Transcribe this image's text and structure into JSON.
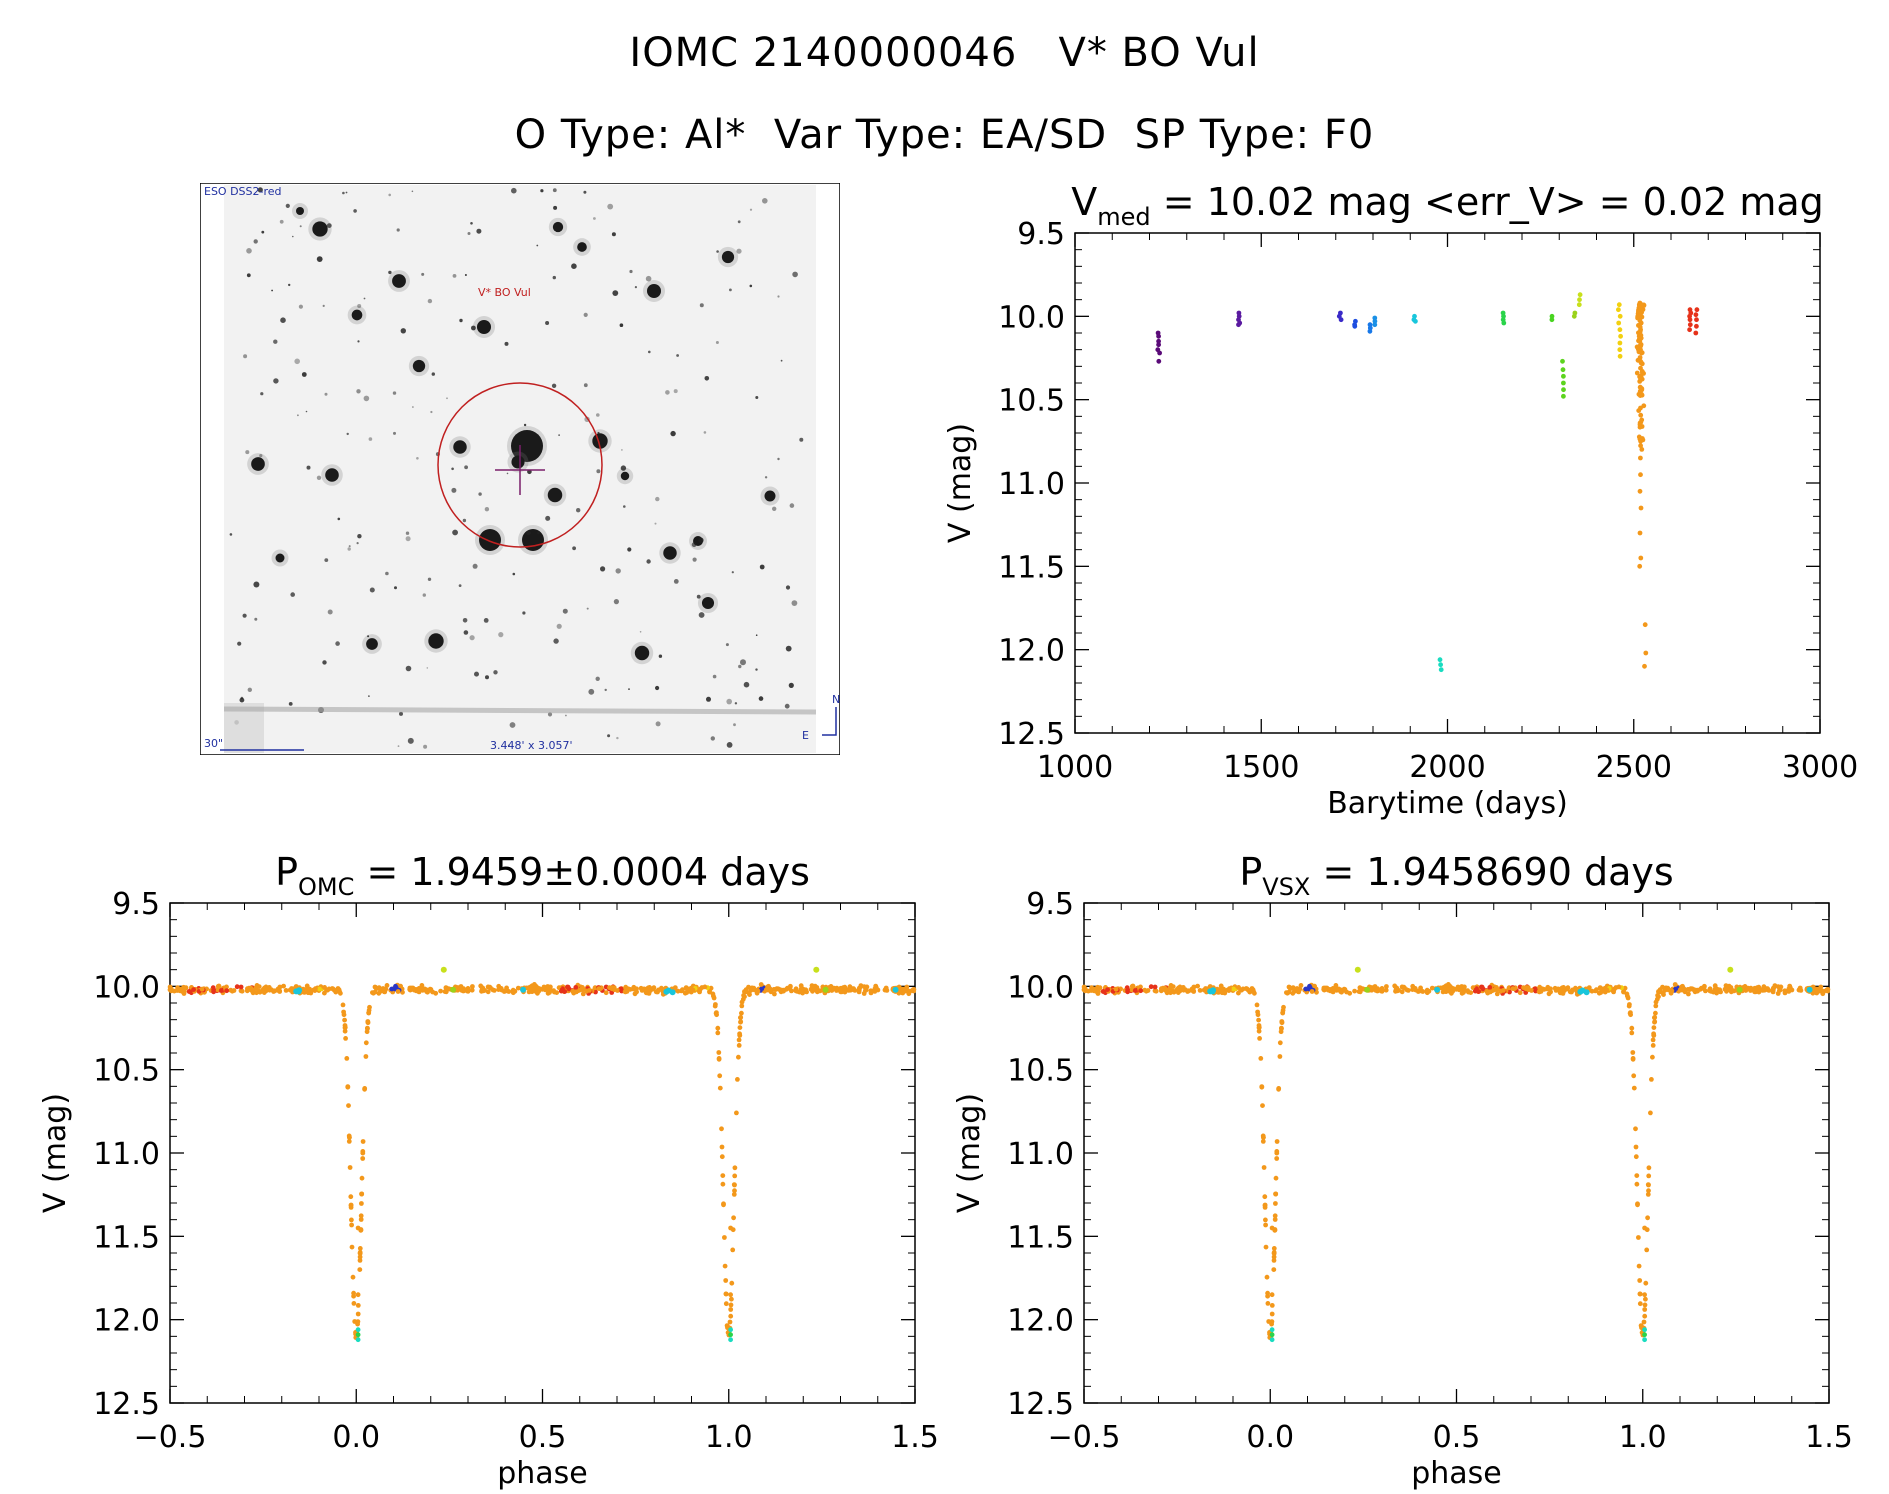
{
  "header": {
    "line1": "IOMC 2140000046   V* BO Vul",
    "line2": "O Type: Al*  Var Type: EA/SD  SP Type: F0"
  },
  "finder": {
    "survey_label": "ESO DSS2-red",
    "target_label": "V* BO Vul",
    "scale_label": "30\"",
    "fov_label": "3.448' x 3.057'",
    "east_label": "E",
    "north_label": "N"
  },
  "chart_data": [
    {
      "id": "lightcurve",
      "type": "scatter",
      "title_main": "V",
      "title_sub": "med",
      "title_rest": " = 10.02 mag <err_V> = 0.02 mag",
      "xlabel": "Barytime (days)",
      "ylabel": "V (mag)",
      "xlim": [
        1000,
        3000
      ],
      "ylim": [
        12.5,
        9.5
      ],
      "xticks": [
        1000,
        1500,
        2000,
        2500,
        3000
      ],
      "xtick_labels": [
        "1000",
        "1500",
        "2000",
        "2500",
        "3000"
      ],
      "yticks": [
        9.5,
        10.0,
        10.5,
        11.0,
        11.5,
        12.0,
        12.5
      ],
      "ytick_labels": [
        "9.5",
        "10.0",
        "10.5",
        "11.0",
        "11.5",
        "12.0",
        "12.5"
      ],
      "groups": [
        {
          "t": 1225,
          "color": "#5a0a78",
          "v": [
            10.1,
            10.12,
            10.15,
            10.17,
            10.2,
            10.22,
            10.27
          ]
        },
        {
          "t": 1440,
          "color": "#5a1aa0",
          "v": [
            9.98,
            10.0,
            10.02,
            10.04,
            10.05
          ]
        },
        {
          "t": 1712,
          "color": "#3a2ac8",
          "v": [
            9.98,
            10.0,
            10.02
          ]
        },
        {
          "t": 1750,
          "color": "#1e4ee0",
          "v": [
            10.03,
            10.05,
            10.06
          ]
        },
        {
          "t": 1792,
          "color": "#1878e8",
          "v": [
            10.05,
            10.07,
            10.09
          ]
        },
        {
          "t": 1805,
          "color": "#1a90e6",
          "v": [
            10.01,
            10.03,
            10.05
          ]
        },
        {
          "t": 1912,
          "color": "#19c6dc",
          "v": [
            10.0,
            10.02,
            10.03
          ]
        },
        {
          "t": 1982,
          "color": "#19dcc0",
          "v": [
            12.06,
            12.09,
            12.12
          ]
        },
        {
          "t": 2150,
          "color": "#2ad44a",
          "v": [
            9.98,
            10.0,
            10.02,
            10.04
          ]
        },
        {
          "t": 2280,
          "color": "#48d420",
          "v": [
            10.0,
            10.02
          ]
        },
        {
          "t": 2310,
          "color": "#5cd41e",
          "v": [
            10.27,
            10.32,
            10.36,
            10.4,
            10.44,
            10.48
          ]
        },
        {
          "t": 2340,
          "color": "#9ad21a",
          "v": [
            9.98,
            10.0
          ]
        },
        {
          "t": 2355,
          "color": "#c8e01c",
          "v": [
            9.87,
            9.9,
            9.93
          ]
        },
        {
          "t": 2462,
          "color": "#f2d010",
          "v": [
            9.93,
            9.96,
            10.0,
            10.04,
            10.08,
            10.12,
            10.16,
            10.2,
            10.24
          ]
        },
        {
          "t": 2518,
          "color": "#f3981b",
          "v": [
            9.92,
            9.96,
            10.0,
            10.04,
            10.08,
            10.14,
            10.2,
            10.28,
            10.36,
            10.45,
            10.55,
            10.65,
            10.75,
            10.85,
            10.95,
            11.05,
            11.15,
            11.3,
            11.45,
            11.5
          ]
        },
        {
          "t": 2530,
          "color": "#f3981b",
          "v": [
            11.85,
            12.02,
            12.1
          ]
        },
        {
          "t": 2650,
          "color": "#e6321a",
          "v": [
            9.96,
            9.98,
            10.0,
            10.02,
            10.05,
            10.08
          ]
        },
        {
          "t": 2668,
          "color": "#e6321a",
          "v": [
            9.96,
            9.99,
            10.02,
            10.06,
            10.1
          ]
        }
      ]
    },
    {
      "id": "phase_omc",
      "type": "scatter",
      "title_main": "P",
      "title_sub": "OMC",
      "title_rest": " = 1.9459±0.0004 days",
      "xlabel": "phase",
      "ylabel": "V (mag)",
      "xlim": [
        -0.5,
        1.5
      ],
      "ylim": [
        12.5,
        9.5
      ],
      "xticks": [
        -0.5,
        0.0,
        0.5,
        1.0,
        1.5
      ],
      "xtick_labels": [
        "−0.5",
        "0.0",
        "0.5",
        "1.0",
        "1.5"
      ],
      "yticks": [
        9.5,
        10.0,
        10.5,
        11.0,
        11.5,
        12.0,
        12.5
      ],
      "ytick_labels": [
        "9.5",
        "10.0",
        "10.5",
        "11.0",
        "11.5",
        "12.0",
        "12.5"
      ],
      "eclipse_depth_mag": 12.1,
      "eclipse_width_phase": 0.045,
      "baseline_mag": 10.02
    },
    {
      "id": "phase_vsx",
      "type": "scatter",
      "title_main": "P",
      "title_sub": "VSX",
      "title_rest": " = 1.9458690 days",
      "xlabel": "phase",
      "ylabel": "V (mag)",
      "xlim": [
        -0.5,
        1.5
      ],
      "ylim": [
        12.5,
        9.5
      ],
      "xticks": [
        -0.5,
        0.0,
        0.5,
        1.0,
        1.5
      ],
      "xtick_labels": [
        "−0.5",
        "0.0",
        "0.5",
        "1.0",
        "1.5"
      ],
      "yticks": [
        9.5,
        10.0,
        10.5,
        11.0,
        11.5,
        12.0,
        12.5
      ],
      "ytick_labels": [
        "9.5",
        "10.0",
        "10.5",
        "11.0",
        "11.5",
        "12.0",
        "12.5"
      ],
      "eclipse_depth_mag": 12.1,
      "eclipse_width_phase": 0.045,
      "baseline_mag": 10.02
    }
  ]
}
